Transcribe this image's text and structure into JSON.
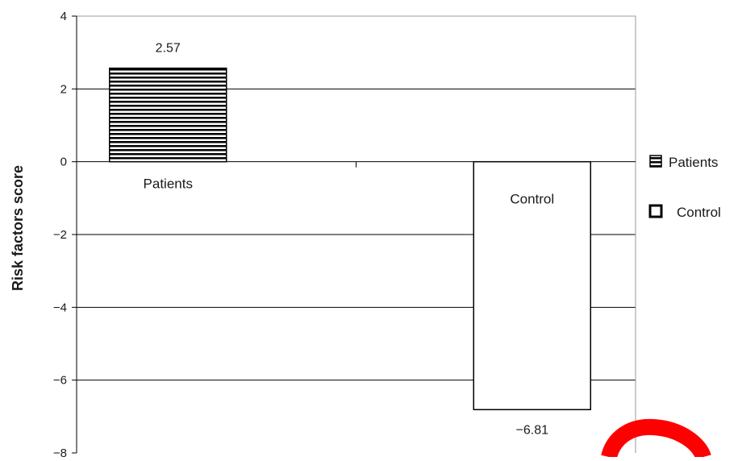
{
  "chart_data": {
    "type": "bar",
    "title": "",
    "xlabel": "",
    "ylabel": "Risk factors score",
    "ylim": [
      -8,
      4
    ],
    "yticks": [
      4,
      2,
      0,
      -2,
      -4,
      -6,
      -8
    ],
    "ytick_labels": [
      "4",
      "2",
      "0",
      "−2",
      "−4",
      "−6",
      "−8"
    ],
    "grid": true,
    "legend_position": "right",
    "categories": [
      "Patients",
      "Control"
    ],
    "values": [
      2.57,
      -6.81
    ],
    "value_labels": [
      "2.57",
      "−6.81"
    ],
    "series": [
      {
        "name": "Patients",
        "fill": "horizontal-stripes",
        "value": 2.57
      },
      {
        "name": "Control",
        "fill": "white",
        "value": -6.81
      }
    ],
    "legend": [
      "Patients",
      "Control"
    ],
    "colors": {
      "bar_outline": "#000000",
      "stripe": "#000000",
      "annotation": "#ff0000"
    }
  }
}
